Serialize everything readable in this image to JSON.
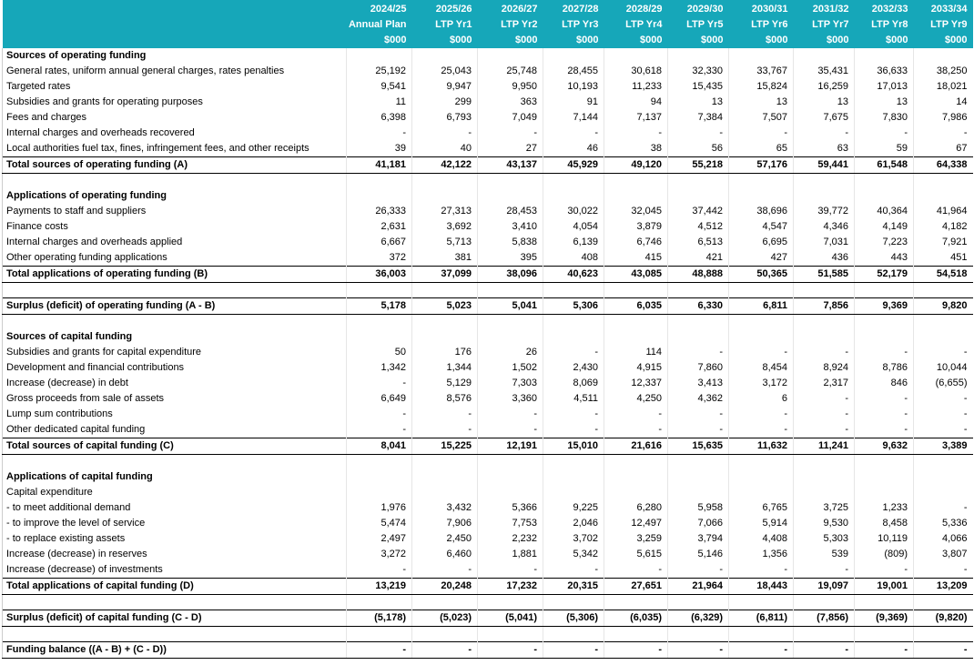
{
  "table": {
    "columns": [
      {
        "year": "2024/25",
        "sub": "Annual Plan",
        "unit": "$000"
      },
      {
        "year": "2025/26",
        "sub": "LTP Yr1",
        "unit": "$000"
      },
      {
        "year": "2026/27",
        "sub": "LTP Yr2",
        "unit": "$000"
      },
      {
        "year": "2027/28",
        "sub": "LTP Yr3",
        "unit": "$000"
      },
      {
        "year": "2028/29",
        "sub": "LTP Yr4",
        "unit": "$000"
      },
      {
        "year": "2029/30",
        "sub": "LTP Yr5",
        "unit": "$000"
      },
      {
        "year": "2030/31",
        "sub": "LTP Yr6",
        "unit": "$000"
      },
      {
        "year": "2031/32",
        "sub": "LTP Yr7",
        "unit": "$000"
      },
      {
        "year": "2032/33",
        "sub": "LTP Yr8",
        "unit": "$000"
      },
      {
        "year": "2033/34",
        "sub": "LTP Yr9",
        "unit": "$000"
      }
    ],
    "sections": [
      [
        {
          "label": "Sources of operating funding"
        },
        {
          "label": "General rates, uniform annual general charges, rates penalties",
          "values": [
            "25,192",
            "25,043",
            "25,748",
            "28,455",
            "30,618",
            "32,330",
            "33,767",
            "35,431",
            "36,633",
            "38,250"
          ]
        },
        {
          "label": "Targeted rates",
          "values": [
            "9,541",
            "9,947",
            "9,950",
            "10,193",
            "11,233",
            "15,435",
            "15,824",
            "16,259",
            "17,013",
            "18,021"
          ]
        },
        {
          "label": "Subsidies and grants for operating purposes",
          "values": [
            "11",
            "299",
            "363",
            "91",
            "94",
            "13",
            "13",
            "13",
            "13",
            "14"
          ]
        },
        {
          "label": "Fees and charges",
          "values": [
            "6,398",
            "6,793",
            "7,049",
            "7,144",
            "7,137",
            "7,384",
            "7,507",
            "7,675",
            "7,830",
            "7,986"
          ]
        },
        {
          "label": "Internal charges and overheads recovered",
          "values": [
            "-",
            "-",
            "-",
            "-",
            "-",
            "-",
            "-",
            "-",
            "-",
            "-"
          ]
        },
        {
          "label": "Local authorities fuel tax, fines, infringement fees, and other receipts",
          "values": [
            "39",
            "40",
            "27",
            "46",
            "38",
            "56",
            "65",
            "63",
            "59",
            "67"
          ]
        },
        {
          "label": "Total sources of operating funding (A)",
          "values": [
            "41,181",
            "42,122",
            "43,137",
            "45,929",
            "49,120",
            "55,218",
            "57,176",
            "59,441",
            "61,548",
            "64,338"
          ]
        }
      ],
      [
        {
          "label": "Applications of operating funding"
        },
        {
          "label": "Payments to staff and suppliers",
          "values": [
            "26,333",
            "27,313",
            "28,453",
            "30,022",
            "32,045",
            "37,442",
            "38,696",
            "39,772",
            "40,364",
            "41,964"
          ]
        },
        {
          "label": "Finance costs",
          "values": [
            "2,631",
            "3,692",
            "3,410",
            "4,054",
            "3,879",
            "4,512",
            "4,547",
            "4,346",
            "4,149",
            "4,182"
          ]
        },
        {
          "label": "Internal charges and overheads applied",
          "values": [
            "6,667",
            "5,713",
            "5,838",
            "6,139",
            "6,746",
            "6,513",
            "6,695",
            "7,031",
            "7,223",
            "7,921"
          ]
        },
        {
          "label": "Other operating funding applications",
          "values": [
            "372",
            "381",
            "395",
            "408",
            "415",
            "421",
            "427",
            "436",
            "443",
            "451"
          ]
        },
        {
          "label": "Total applications of operating funding (B)",
          "values": [
            "36,003",
            "37,099",
            "38,096",
            "40,623",
            "43,085",
            "48,888",
            "50,365",
            "51,585",
            "52,179",
            "54,518"
          ]
        }
      ],
      [
        {
          "label": "Surplus (deficit) of operating funding (A - B)",
          "values": [
            "5,178",
            "5,023",
            "5,041",
            "5,306",
            "6,035",
            "6,330",
            "6,811",
            "7,856",
            "9,369",
            "9,820"
          ]
        }
      ],
      [
        {
          "label": "Sources of capital funding"
        },
        {
          "label": "Subsidies and grants for capital expenditure",
          "values": [
            "50",
            "176",
            "26",
            "-",
            "114",
            "-",
            "-",
            "-",
            "-",
            "-"
          ]
        },
        {
          "label": "Development and financial contributions",
          "values": [
            "1,342",
            "1,344",
            "1,502",
            "2,430",
            "4,915",
            "7,860",
            "8,454",
            "8,924",
            "8,786",
            "10,044"
          ]
        },
        {
          "label": "Increase (decrease) in debt",
          "values": [
            "-",
            "5,129",
            "7,303",
            "8,069",
            "12,337",
            "3,413",
            "3,172",
            "2,317",
            "846",
            "(6,655)"
          ]
        },
        {
          "label": "Gross proceeds from sale of assets",
          "values": [
            "6,649",
            "8,576",
            "3,360",
            "4,511",
            "4,250",
            "4,362",
            "6",
            "-",
            "-",
            "-"
          ]
        },
        {
          "label": "Lump sum contributions",
          "values": [
            "-",
            "-",
            "-",
            "-",
            "-",
            "-",
            "-",
            "-",
            "-",
            "-"
          ]
        },
        {
          "label": "Other dedicated capital funding",
          "values": [
            "-",
            "-",
            "-",
            "-",
            "-",
            "-",
            "-",
            "-",
            "-",
            "-"
          ]
        },
        {
          "label": "Total sources of capital funding (C)",
          "values": [
            "8,041",
            "15,225",
            "12,191",
            "15,010",
            "21,616",
            "15,635",
            "11,632",
            "11,241",
            "9,632",
            "3,389"
          ]
        }
      ],
      [
        {
          "label": "Applications of capital funding"
        },
        {
          "label": "Capital expenditure"
        },
        {
          "label": "- to meet additional demand",
          "values": [
            "1,976",
            "3,432",
            "5,366",
            "9,225",
            "6,280",
            "5,958",
            "6,765",
            "3,725",
            "1,233",
            "-"
          ]
        },
        {
          "label": "- to improve the level of service",
          "values": [
            "5,474",
            "7,906",
            "7,753",
            "2,046",
            "12,497",
            "7,066",
            "5,914",
            "9,530",
            "8,458",
            "5,336"
          ]
        },
        {
          "label": "- to replace existing assets",
          "values": [
            "2,497",
            "2,450",
            "2,232",
            "3,702",
            "3,259",
            "3,794",
            "4,408",
            "5,303",
            "10,119",
            "4,066"
          ]
        },
        {
          "label": "Increase (decrease) in reserves",
          "values": [
            "3,272",
            "6,460",
            "1,881",
            "5,342",
            "5,615",
            "5,146",
            "1,356",
            "539",
            "(809)",
            "3,807"
          ]
        },
        {
          "label": "Increase (decrease) of investments",
          "values": [
            "-",
            "-",
            "-",
            "-",
            "-",
            "-",
            "-",
            "-",
            "-",
            "-"
          ]
        },
        {
          "label": "Total applications of capital funding (D)",
          "values": [
            "13,219",
            "20,248",
            "17,232",
            "20,315",
            "27,651",
            "21,964",
            "18,443",
            "19,097",
            "19,001",
            "13,209"
          ]
        }
      ],
      [
        {
          "label": "Surplus (deficit) of capital funding (C - D)",
          "values": [
            "(5,178)",
            "(5,023)",
            "(5,041)",
            "(5,306)",
            "(6,035)",
            "(6,329)",
            "(6,811)",
            "(7,856)",
            "(9,369)",
            "(9,820)"
          ]
        }
      ],
      [
        {
          "label": "Funding balance ((A - B) + (C - D))",
          "values": [
            "-",
            "-",
            "-",
            "-",
            "-",
            "-",
            "-",
            "-",
            "-",
            "-"
          ]
        }
      ]
    ]
  }
}
